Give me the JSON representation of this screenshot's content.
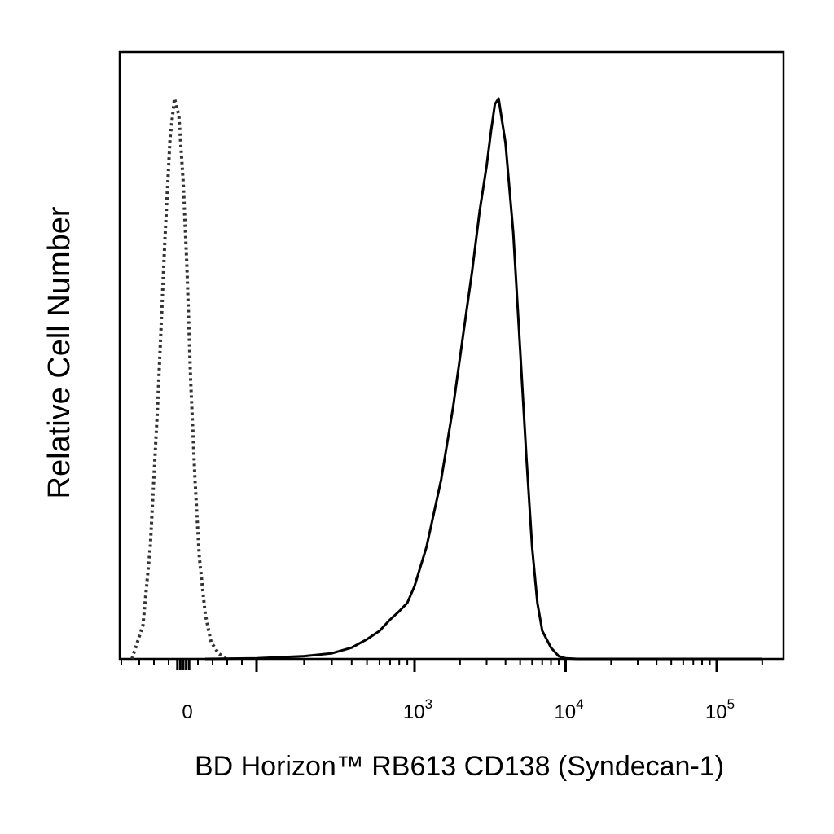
{
  "chart_data": {
    "type": "line",
    "title": "",
    "xlabel": "BD Horizon™ RB613 CD138  (Syndecan-1)",
    "ylabel": "Relative Cell Number",
    "x_scale": "biexponential",
    "xlim": [
      -150,
      200000
    ],
    "ylim": [
      0,
      1
    ],
    "grid": false,
    "legend": "none",
    "x_ticks": [
      {
        "value": 0,
        "base": "0",
        "exp": ""
      },
      {
        "value": 1000,
        "base": "10",
        "exp": "3"
      },
      {
        "value": 10000,
        "base": "10",
        "exp": "4"
      },
      {
        "value": 100000,
        "base": "10",
        "exp": "5"
      }
    ],
    "series": [
      {
        "style": "dotted",
        "color": "#333333",
        "x": [
          -70,
          -55,
          -45,
          -35,
          -25,
          -18,
          -12,
          -6,
          0,
          5,
          10,
          16,
          22,
          30,
          38,
          48,
          58
        ],
        "y": [
          0.0,
          0.06,
          0.2,
          0.45,
          0.75,
          0.93,
          1.0,
          0.97,
          0.85,
          0.7,
          0.5,
          0.32,
          0.18,
          0.08,
          0.03,
          0.01,
          0.0
        ]
      },
      {
        "style": "solid",
        "color": "#000000",
        "x": [
          30,
          100,
          200,
          300,
          400,
          500,
          600,
          700,
          800,
          900,
          1000,
          1200,
          1500,
          1800,
          2100,
          2400,
          2700,
          3000,
          3200,
          3400,
          3600,
          4000,
          4500,
          5000,
          5500,
          6000,
          6500,
          7000,
          8000,
          9000,
          10000,
          12000,
          30000,
          200000
        ],
        "y": [
          0.0,
          0.001,
          0.005,
          0.01,
          0.02,
          0.035,
          0.05,
          0.07,
          0.085,
          0.1,
          0.13,
          0.2,
          0.32,
          0.45,
          0.58,
          0.69,
          0.8,
          0.88,
          0.94,
          0.99,
          1.0,
          0.92,
          0.76,
          0.55,
          0.36,
          0.2,
          0.1,
          0.05,
          0.02,
          0.005,
          0.001,
          0.0,
          0.0,
          0.0
        ]
      }
    ]
  }
}
